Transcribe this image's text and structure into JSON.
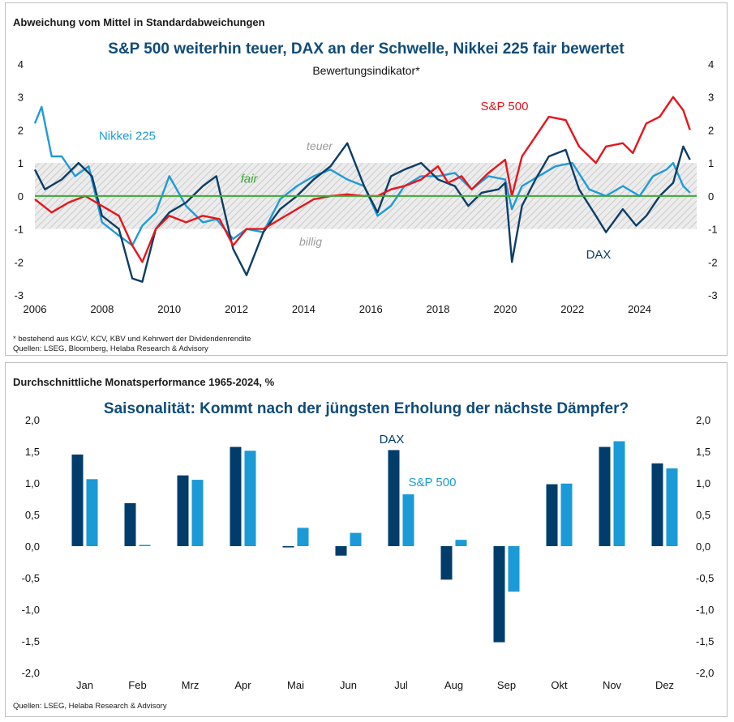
{
  "top": {
    "kicker": "Abweichung vom Mittel in Standardabweichungen",
    "title": "S&P 500 weiterhin teuer, DAX an der Schwelle, Nikkei 225 fair bewertet",
    "subtitle": "Bewertungsindikator*",
    "footnote": "* bestehend aus KGV, KCV, KBV und Kehrwert der Dividendenrendite",
    "sources": "Quellen: LSEG, Bloomberg, Helaba Research & Advisory",
    "zone_labels": {
      "expensive": "teuer",
      "fair": "fair",
      "cheap": "billig"
    }
  },
  "bottom": {
    "kicker": "Durchschnittliche Monatsperformance 1965-2024, %",
    "title": "Saisonalität: Kommt nach der jüngsten Erholung der nächste Dämpfer?",
    "sources": "Quellen: LSEG, Helaba Research & Advisory"
  },
  "colors": {
    "sp500_line": "#e8141c",
    "dax_line": "#0d3d66",
    "nikkei_line": "#1f9bd7",
    "fair_line": "#3aa935",
    "band": "#b3b3b3",
    "dax_bar": "#003d6b",
    "sp500_bar": "#1a9ad6",
    "title": "#0f4b7a"
  },
  "chart_data": [
    {
      "type": "line",
      "title": "S&P 500 weiterhin teuer, DAX an der Schwelle, Nikkei 225 fair bewertet",
      "ylabel": "Abweichung vom Mittel in Standardabweichungen",
      "xlim": [
        2006,
        2025.7
      ],
      "ylim": [
        -3,
        4
      ],
      "x_ticks": [
        "2006",
        "2008",
        "2010",
        "2012",
        "2014",
        "2016",
        "2018",
        "2020",
        "2022",
        "2024"
      ],
      "y_ticks": [
        "-3",
        "-2",
        "-1",
        "0",
        "1",
        "2",
        "3",
        "4"
      ],
      "band": [
        -1,
        1
      ],
      "reference_line": 0,
      "series": [
        {
          "name": "S&P 500",
          "x": [
            2006,
            2006.5,
            2007,
            2007.5,
            2008,
            2008.5,
            2008.9,
            2009.2,
            2009.6,
            2010,
            2010.5,
            2011,
            2011.5,
            2011.9,
            2012.3,
            2012.8,
            2013.3,
            2013.8,
            2014.3,
            2014.8,
            2015.3,
            2015.8,
            2016.2,
            2016.6,
            2017,
            2017.5,
            2018,
            2018.3,
            2018.7,
            2019,
            2019.5,
            2020,
            2020.2,
            2020.5,
            2020.9,
            2021.3,
            2021.8,
            2022.2,
            2022.7,
            2023,
            2023.5,
            2023.8,
            2024.2,
            2024.6,
            2025,
            2025.3,
            2025.5
          ],
          "values": [
            -0.1,
            -0.5,
            -0.2,
            0.0,
            -0.3,
            -0.6,
            -1.5,
            -2.0,
            -1.0,
            -0.6,
            -0.8,
            -0.6,
            -0.7,
            -1.5,
            -1.0,
            -1.0,
            -0.7,
            -0.4,
            -0.1,
            0.0,
            0.05,
            0.0,
            0.0,
            0.2,
            0.3,
            0.5,
            0.9,
            0.4,
            0.6,
            0.2,
            0.7,
            1.1,
            0.0,
            1.2,
            1.8,
            2.4,
            2.3,
            1.5,
            1.0,
            1.5,
            1.6,
            1.3,
            2.2,
            2.4,
            3.0,
            2.6,
            2.0
          ]
        },
        {
          "name": "DAX",
          "x": [
            2006,
            2006.3,
            2006.8,
            2007.3,
            2007.7,
            2008,
            2008.5,
            2008.9,
            2009.2,
            2009.6,
            2010,
            2010.5,
            2011,
            2011.4,
            2011.9,
            2012.3,
            2012.8,
            2013.3,
            2013.8,
            2014.3,
            2014.8,
            2015.3,
            2015.8,
            2016.2,
            2016.6,
            2017,
            2017.5,
            2018,
            2018.5,
            2018.9,
            2019.3,
            2019.8,
            2020,
            2020.2,
            2020.5,
            2020.9,
            2021.3,
            2021.8,
            2022.2,
            2022.7,
            2023,
            2023.5,
            2023.9,
            2024.2,
            2024.6,
            2025,
            2025.3,
            2025.5
          ],
          "values": [
            0.8,
            0.2,
            0.5,
            1.0,
            0.6,
            -0.6,
            -1.0,
            -2.5,
            -2.6,
            -1.0,
            -0.5,
            -0.2,
            0.3,
            0.6,
            -1.6,
            -2.4,
            -1.1,
            -0.4,
            0.0,
            0.5,
            0.9,
            1.6,
            0.3,
            -0.5,
            0.6,
            0.8,
            1.0,
            0.5,
            0.3,
            -0.3,
            0.1,
            0.2,
            0.4,
            -2.0,
            -0.3,
            0.5,
            1.2,
            1.4,
            0.2,
            -0.6,
            -1.1,
            -0.4,
            -0.9,
            -0.6,
            0.0,
            0.4,
            1.5,
            1.1
          ]
        },
        {
          "name": "Nikkei 225",
          "x": [
            2006,
            2006.2,
            2006.5,
            2006.8,
            2007.2,
            2007.6,
            2008,
            2008.5,
            2008.9,
            2009.2,
            2009.6,
            2010,
            2010.5,
            2011,
            2011.4,
            2011.9,
            2012.3,
            2012.8,
            2013.3,
            2013.8,
            2014.3,
            2014.8,
            2015.3,
            2015.8,
            2016.2,
            2016.6,
            2017,
            2017.5,
            2018,
            2018.5,
            2019,
            2019.5,
            2020,
            2020.2,
            2020.5,
            2021,
            2021.5,
            2022,
            2022.5,
            2023,
            2023.5,
            2024,
            2024.4,
            2024.8,
            2025,
            2025.3,
            2025.5
          ],
          "values": [
            2.2,
            2.7,
            1.2,
            1.2,
            0.6,
            0.9,
            -0.8,
            -1.2,
            -1.5,
            -0.9,
            -0.5,
            0.6,
            -0.3,
            -0.8,
            -0.7,
            -1.3,
            -1.0,
            -1.1,
            -0.1,
            0.3,
            0.6,
            0.8,
            0.5,
            0.3,
            -0.6,
            -0.3,
            0.3,
            0.6,
            0.6,
            0.7,
            0.2,
            0.6,
            0.5,
            -0.4,
            0.3,
            0.6,
            0.9,
            1.0,
            0.2,
            0.0,
            0.3,
            0.0,
            0.6,
            0.8,
            1.0,
            0.3,
            0.1
          ]
        }
      ]
    },
    {
      "type": "bar",
      "title": "Saisonalität: Kommt nach der jüngsten Erholung der nächste Dämpfer?",
      "ylabel": "Durchschnittliche Monatsperformance 1965-2024, %",
      "categories": [
        "Jan",
        "Feb",
        "Mrz",
        "Apr",
        "Mai",
        "Jun",
        "Jul",
        "Aug",
        "Sep",
        "Okt",
        "Nov",
        "Dez"
      ],
      "ylim": [
        -2,
        2
      ],
      "y_ticks": [
        "2,0",
        "1,5",
        "1,0",
        "0,5",
        "0,0",
        "-0,5",
        "-1,0",
        "-1,5",
        "-2,0"
      ],
      "series": [
        {
          "name": "DAX",
          "values": [
            1.45,
            0.68,
            1.12,
            1.57,
            -0.02,
            -0.15,
            1.52,
            -0.53,
            -1.52,
            0.98,
            1.57,
            1.31
          ]
        },
        {
          "name": "S&P 500",
          "values": [
            1.06,
            0.02,
            1.05,
            1.51,
            0.29,
            0.21,
            0.82,
            0.1,
            -0.72,
            0.99,
            1.66,
            1.23
          ]
        }
      ]
    }
  ]
}
